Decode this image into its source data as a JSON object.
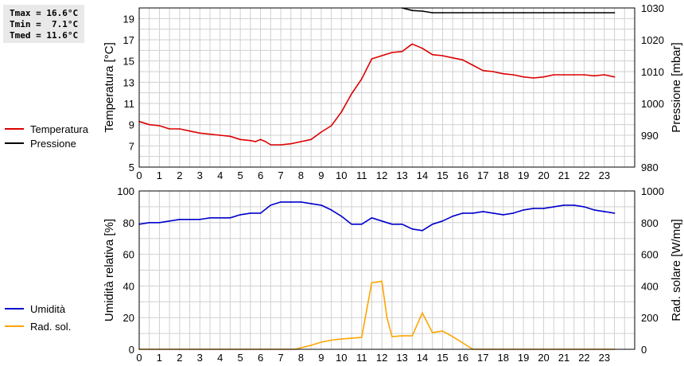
{
  "stats": {
    "tmax": "Tmax = 16.6°C",
    "tmin": "Tmin =  7.1°C",
    "tmed": "Tmed = 11.6°C"
  },
  "colors": {
    "temperature": "#dd0000",
    "pressure": "#000000",
    "humidity": "#0000cc",
    "solar": "#ffa500",
    "grid": "#d0d0d0"
  },
  "chart_data": [
    {
      "type": "line",
      "xlim": [
        0,
        24.5
      ],
      "x_ticks": [
        0,
        1,
        2,
        3,
        4,
        5,
        6,
        7,
        8,
        9,
        10,
        11,
        12,
        13,
        14,
        15,
        16,
        17,
        18,
        19,
        20,
        21,
        22,
        23
      ],
      "ylabel": "Temperatura [°C]",
      "y2label": "Pressione [mbar]",
      "ylim": [
        5,
        20
      ],
      "y_ticks": [
        5,
        7,
        9,
        11,
        13,
        15,
        17,
        19
      ],
      "y2lim": [
        980,
        1030
      ],
      "y2_ticks": [
        980,
        990,
        1000,
        1010,
        1020,
        1030
      ],
      "grid": true,
      "legend_position": "left",
      "series": [
        {
          "name": "Temperatura",
          "axis": "left",
          "x": [
            0,
            0.5,
            1,
            1.5,
            2,
            2.5,
            3,
            3.5,
            4,
            4.5,
            5,
            5.5,
            5.75,
            6,
            6.25,
            6.5,
            7,
            7.5,
            8,
            8.5,
            9,
            9.5,
            10,
            10.5,
            11,
            11.5,
            12,
            12.5,
            13,
            13.5,
            14,
            14.5,
            15,
            15.5,
            16,
            16.5,
            17,
            17.5,
            18,
            18.5,
            19,
            19.5,
            20,
            20.5,
            21,
            21.5,
            22,
            22.5,
            23,
            23.5
          ],
          "y": [
            9.3,
            9.0,
            8.9,
            8.6,
            8.6,
            8.4,
            8.2,
            8.1,
            8.0,
            7.9,
            7.6,
            7.5,
            7.4,
            7.6,
            7.4,
            7.1,
            7.1,
            7.2,
            7.4,
            7.6,
            8.3,
            8.9,
            10.2,
            11.9,
            13.3,
            15.2,
            15.5,
            15.8,
            15.9,
            16.6,
            16.2,
            15.6,
            15.5,
            15.3,
            15.1,
            14.6,
            14.1,
            14.0,
            13.8,
            13.7,
            13.5,
            13.4,
            13.5,
            13.7,
            13.7,
            13.7,
            13.7,
            13.6,
            13.7,
            13.5
          ]
        },
        {
          "name": "Pressione",
          "axis": "right",
          "x": [
            13,
            13.5,
            14,
            14.5,
            15,
            16,
            17,
            18,
            19,
            20,
            21,
            22,
            23,
            23.5
          ],
          "y": [
            1030,
            1029.2,
            1029.0,
            1028.5,
            1028.5,
            1028.5,
            1028.5,
            1028.5,
            1028.5,
            1028.5,
            1028.5,
            1028.5,
            1028.5,
            1028.5
          ]
        }
      ]
    },
    {
      "type": "line",
      "xlim": [
        0,
        24.5
      ],
      "x_ticks": [
        0,
        1,
        2,
        3,
        4,
        5,
        6,
        7,
        8,
        9,
        10,
        11,
        12,
        13,
        14,
        15,
        16,
        17,
        18,
        19,
        20,
        21,
        22,
        23
      ],
      "ylabel": "Umidità relativa [%]",
      "y2label": "Rad. solare [W/mq]",
      "ylim": [
        0,
        100
      ],
      "y_ticks": [
        0,
        20,
        40,
        60,
        80,
        100
      ],
      "y2lim": [
        0,
        1000
      ],
      "y2_ticks": [
        0,
        200,
        400,
        600,
        800,
        1000
      ],
      "grid": true,
      "legend_position": "left",
      "series": [
        {
          "name": "Umidità",
          "axis": "left",
          "x": [
            0,
            0.5,
            1,
            1.5,
            2,
            2.5,
            3,
            3.5,
            4,
            4.5,
            5,
            5.5,
            6,
            6.5,
            7,
            7.5,
            8,
            8.5,
            9,
            9.5,
            10,
            10.5,
            11,
            11.5,
            12,
            12.5,
            13,
            13.5,
            14,
            14.5,
            15,
            15.5,
            16,
            16.5,
            17,
            17.5,
            18,
            18.5,
            19,
            19.5,
            20,
            20.5,
            21,
            21.5,
            22,
            22.5,
            23,
            23.5
          ],
          "y": [
            79,
            80,
            80,
            81,
            82,
            82,
            82,
            83,
            83,
            83,
            85,
            86,
            86,
            91,
            93,
            93,
            93,
            92,
            91,
            88,
            84,
            79,
            79,
            83,
            81,
            79,
            79,
            76,
            75,
            79,
            81,
            84,
            86,
            86,
            87,
            86,
            85,
            86,
            88,
            89,
            89,
            90,
            91,
            91,
            90,
            88,
            87,
            86
          ]
        },
        {
          "name": "Rad. sol.",
          "axis": "right",
          "x": [
            0,
            1,
            2,
            3,
            4,
            5,
            6,
            7,
            7.75,
            8,
            8.5,
            9,
            9.5,
            10,
            10.5,
            11,
            11.25,
            11.5,
            11.75,
            12,
            12.25,
            12.5,
            13,
            13.5,
            14,
            14.5,
            15,
            15.5,
            16,
            16.5,
            17,
            18,
            19,
            20,
            21,
            22,
            23,
            23.5
          ],
          "y": [
            0,
            0,
            0,
            0,
            0,
            0,
            0,
            0,
            0,
            10,
            25,
            45,
            58,
            65,
            70,
            75,
            250,
            420,
            425,
            430,
            200,
            80,
            85,
            85,
            230,
            105,
            115,
            80,
            40,
            0,
            0,
            0,
            0,
            0,
            0,
            0,
            0,
            0
          ]
        }
      ]
    }
  ]
}
